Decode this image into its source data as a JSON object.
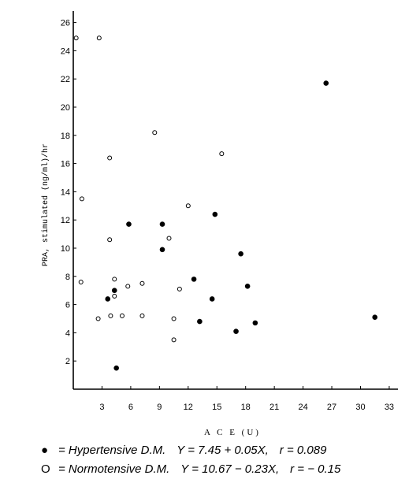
{
  "chart_data": {
    "type": "scatter",
    "xlabel": "A C E (U)",
    "ylabel": "PRA, stimulated (ng/ml)/hr",
    "xlim": [
      0,
      34
    ],
    "ylim": [
      0,
      27
    ],
    "xticks": [
      3,
      6,
      9,
      12,
      15,
      18,
      21,
      24,
      27,
      30,
      33
    ],
    "yticks": [
      2,
      4,
      6,
      8,
      10,
      12,
      14,
      16,
      18,
      20,
      22,
      24,
      26
    ],
    "series": [
      {
        "name": "Hypertensive D.M.",
        "marker": "filled",
        "points": [
          [
            3.6,
            6.4
          ],
          [
            4.3,
            7.0
          ],
          [
            4.5,
            1.5
          ],
          [
            5.8,
            11.7
          ],
          [
            9.3,
            11.7
          ],
          [
            9.3,
            9.9
          ],
          [
            12.6,
            7.8
          ],
          [
            13.2,
            4.8
          ],
          [
            14.5,
            6.4
          ],
          [
            14.8,
            12.4
          ],
          [
            17.0,
            4.1
          ],
          [
            17.5,
            9.6
          ],
          [
            18.2,
            7.3
          ],
          [
            19.0,
            4.7
          ],
          [
            26.4,
            21.7
          ],
          [
            31.5,
            5.1
          ]
        ]
      },
      {
        "name": "Normotensive D.M.",
        "marker": "hollow",
        "points": [
          [
            0.3,
            24.9
          ],
          [
            2.7,
            24.9
          ],
          [
            0.9,
            13.5
          ],
          [
            0.8,
            7.6
          ],
          [
            2.6,
            5.0
          ],
          [
            3.8,
            16.4
          ],
          [
            3.8,
            10.6
          ],
          [
            3.9,
            5.2
          ],
          [
            4.3,
            7.8
          ],
          [
            4.3,
            6.6
          ],
          [
            5.1,
            5.2
          ],
          [
            5.7,
            7.3
          ],
          [
            7.2,
            7.5
          ],
          [
            7.2,
            5.2
          ],
          [
            8.5,
            18.2
          ],
          [
            10.0,
            10.7
          ],
          [
            10.5,
            5.0
          ],
          [
            10.5,
            3.5
          ],
          [
            11.1,
            7.1
          ],
          [
            12.0,
            13.0
          ],
          [
            15.5,
            16.7
          ]
        ]
      }
    ],
    "legend": [
      {
        "symbol": "●",
        "label": "= Hypertensive D.M.",
        "equation": "Y = 7.45 + 0.05X,",
        "r": "r = 0.089"
      },
      {
        "symbol": "O",
        "label": "= Normotensive  D.M.",
        "equation": "Y = 10.67 − 0.23X,",
        "r": "r = − 0.15"
      }
    ],
    "grid": false,
    "legend_placement": "bottom"
  }
}
